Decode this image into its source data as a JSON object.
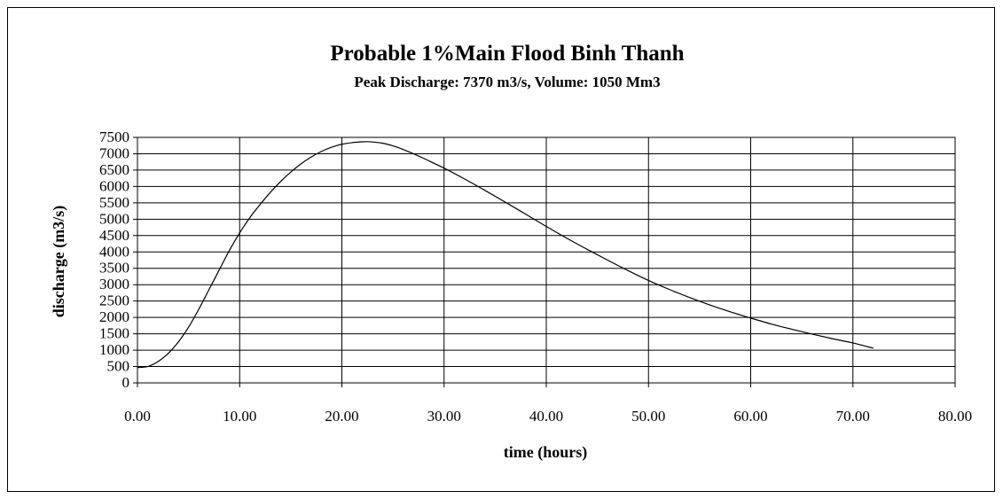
{
  "chart_data": {
    "type": "line",
    "title": "Probable 1%Main Flood Binh Thanh",
    "subtitle": "Peak Discharge: 7370 m3/s, Volume: 1050 Mm3",
    "xlabel": "time (hours)",
    "ylabel": "discharge (m3/s)",
    "xlim": [
      0,
      80
    ],
    "ylim": [
      0,
      7500
    ],
    "x_ticks": [
      "0.00",
      "10.00",
      "20.00",
      "30.00",
      "40.00",
      "50.00",
      "60.00",
      "70.00",
      "80.00"
    ],
    "y_ticks": [
      "0",
      "500",
      "1000",
      "1500",
      "2000",
      "2500",
      "3000",
      "3500",
      "4000",
      "4500",
      "5000",
      "5500",
      "6000",
      "6500",
      "7000",
      "7500"
    ],
    "grid": true,
    "legend": "none",
    "series": [
      {
        "x": [
          0,
          1,
          2,
          3,
          4,
          5,
          6,
          7,
          8,
          9,
          10,
          11,
          12,
          13,
          14,
          15,
          16,
          17,
          18,
          19,
          20,
          21,
          22,
          22.5,
          23,
          24,
          25,
          26,
          27,
          28,
          29,
          30,
          32,
          34,
          36,
          38,
          40,
          42,
          44,
          46,
          48,
          50,
          52,
          54,
          56,
          58,
          60,
          62,
          64,
          66,
          68,
          70,
          72
        ],
        "y": [
          470,
          500,
          650,
          900,
          1250,
          1700,
          2250,
          2850,
          3450,
          4050,
          4580,
          5050,
          5450,
          5820,
          6150,
          6440,
          6690,
          6900,
          7070,
          7200,
          7290,
          7340,
          7365,
          7370,
          7360,
          7320,
          7240,
          7130,
          7000,
          6860,
          6710,
          6560,
          6230,
          5880,
          5520,
          5150,
          4780,
          4420,
          4080,
          3750,
          3430,
          3130,
          2860,
          2610,
          2380,
          2170,
          1980,
          1800,
          1640,
          1490,
          1350,
          1220,
          1060
        ]
      }
    ]
  }
}
